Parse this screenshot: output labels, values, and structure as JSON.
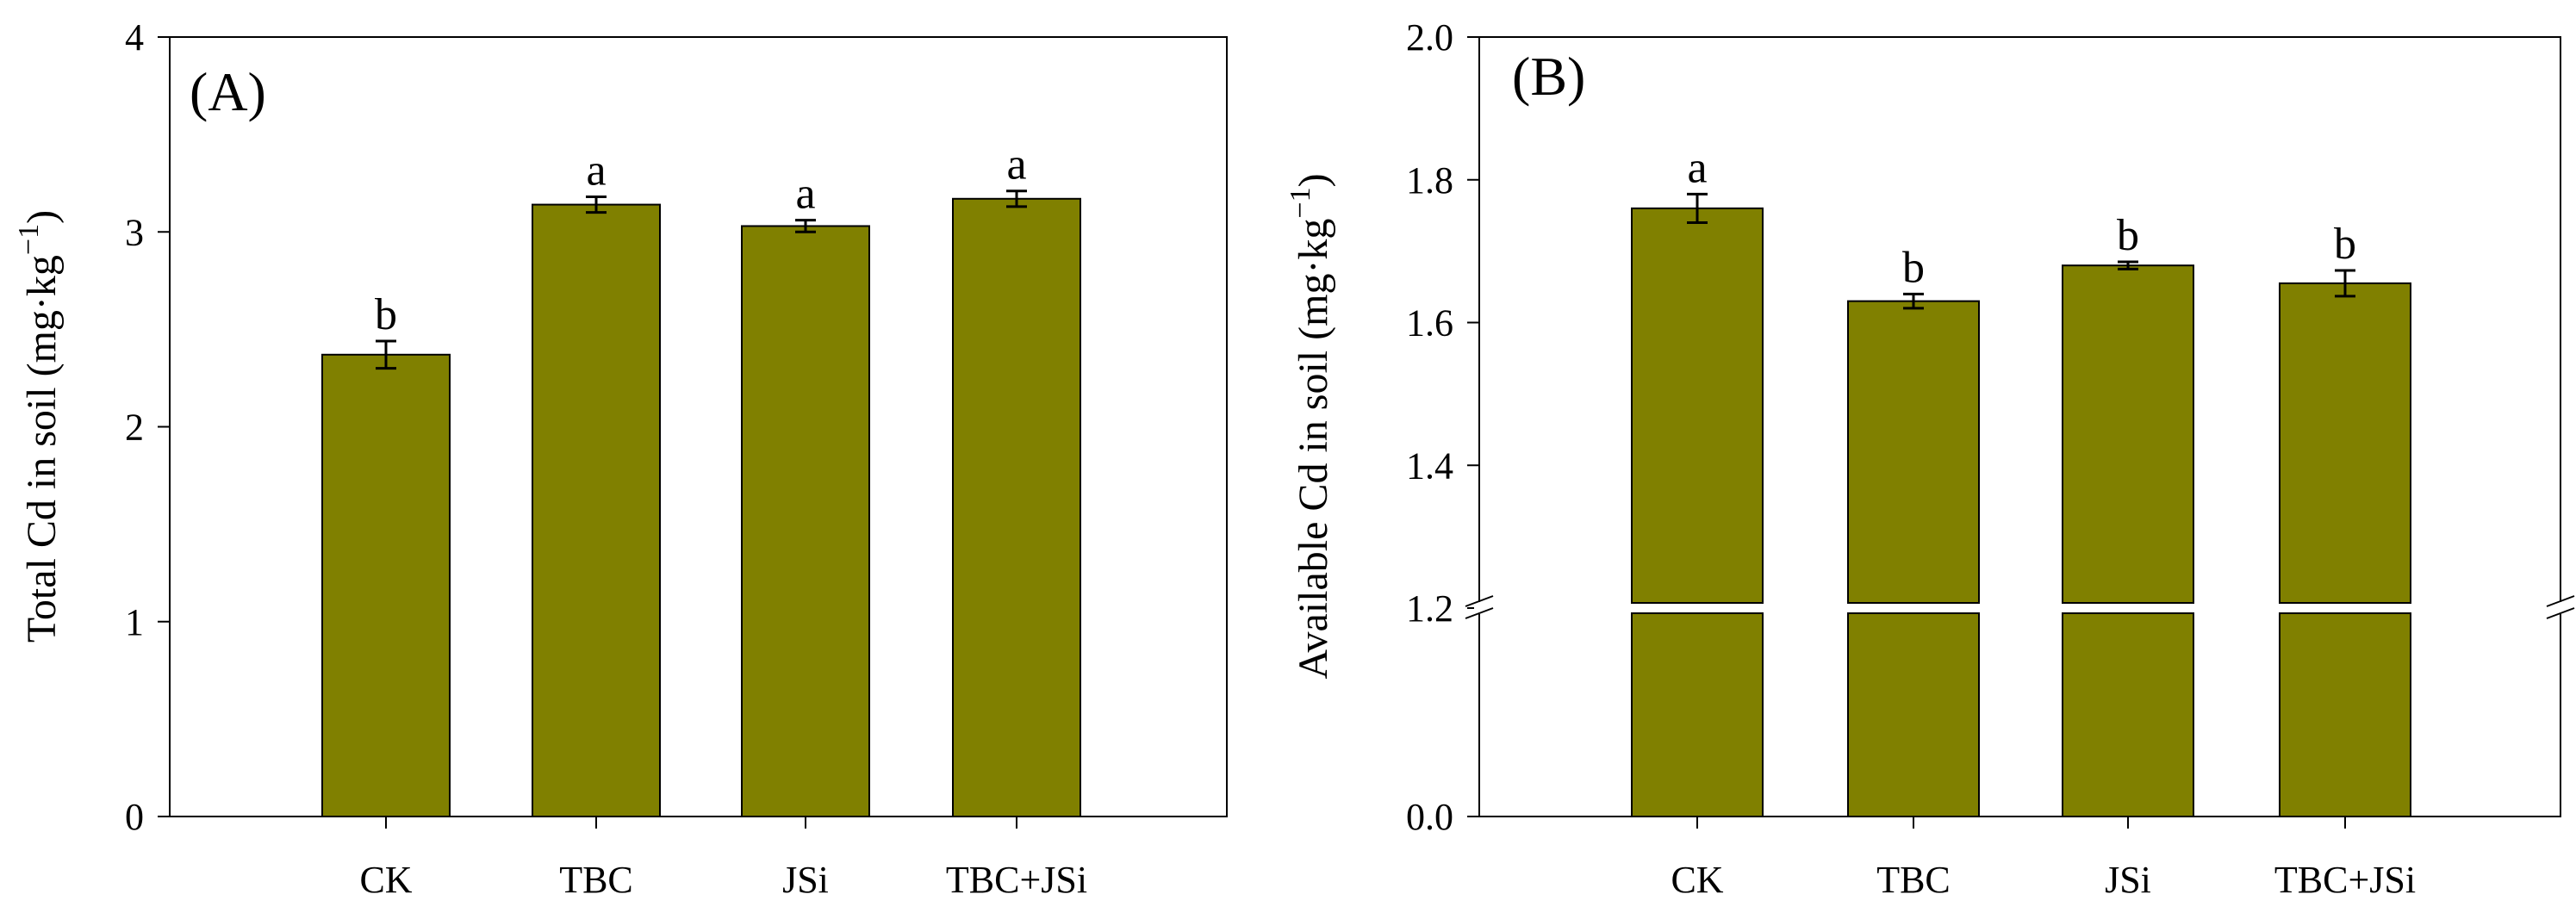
{
  "colors": {
    "bar_fill": "#808000",
    "frame": "#000000",
    "background": "#ffffff"
  },
  "chart_data": [
    {
      "type": "bar",
      "panel_label": "(A)",
      "title": "",
      "categories": [
        "CK",
        "TBC",
        "JSi",
        "TBC+JSi"
      ],
      "values": [
        2.37,
        3.14,
        3.03,
        3.17
      ],
      "errors": [
        0.07,
        0.04,
        0.03,
        0.04
      ],
      "significance": [
        "b",
        "a",
        "a",
        "a"
      ],
      "xlabel": "",
      "ylabel": "Total Cd in soil (mg·kg",
      "ylabel_sup": "−1",
      "ylabel_close": ")",
      "ylim": [
        0,
        4
      ],
      "yticks": [
        0,
        1,
        2,
        3,
        4
      ],
      "ytick_labels": [
        "0",
        "1",
        "2",
        "3",
        "4"
      ],
      "grid": false,
      "legend": "none"
    },
    {
      "type": "bar",
      "panel_label": "(B)",
      "title": "",
      "categories": [
        "CK",
        "TBC",
        "JSi",
        "TBC+JSi"
      ],
      "values": [
        1.76,
        1.63,
        1.68,
        1.655
      ],
      "errors": [
        0.02,
        0.01,
        0.005,
        0.018
      ],
      "significance": [
        "a",
        "b",
        "b",
        "b"
      ],
      "xlabel": "",
      "ylabel": "Available Cd in soil (mg·kg",
      "ylabel_sup": "−1",
      "ylabel_close": ")",
      "axis_break": {
        "lower_segment": [
          0,
          1.2
        ],
        "upper_segment": [
          1.2,
          2.0
        ]
      },
      "ylim": [
        0,
        2.0
      ],
      "yticks": [
        0.0,
        1.2,
        1.4,
        1.6,
        1.8,
        2.0
      ],
      "ytick_labels": [
        "0.0",
        "1.2",
        "1.4",
        "1.6",
        "1.8",
        "2.0"
      ],
      "grid": false,
      "legend": "none"
    }
  ]
}
